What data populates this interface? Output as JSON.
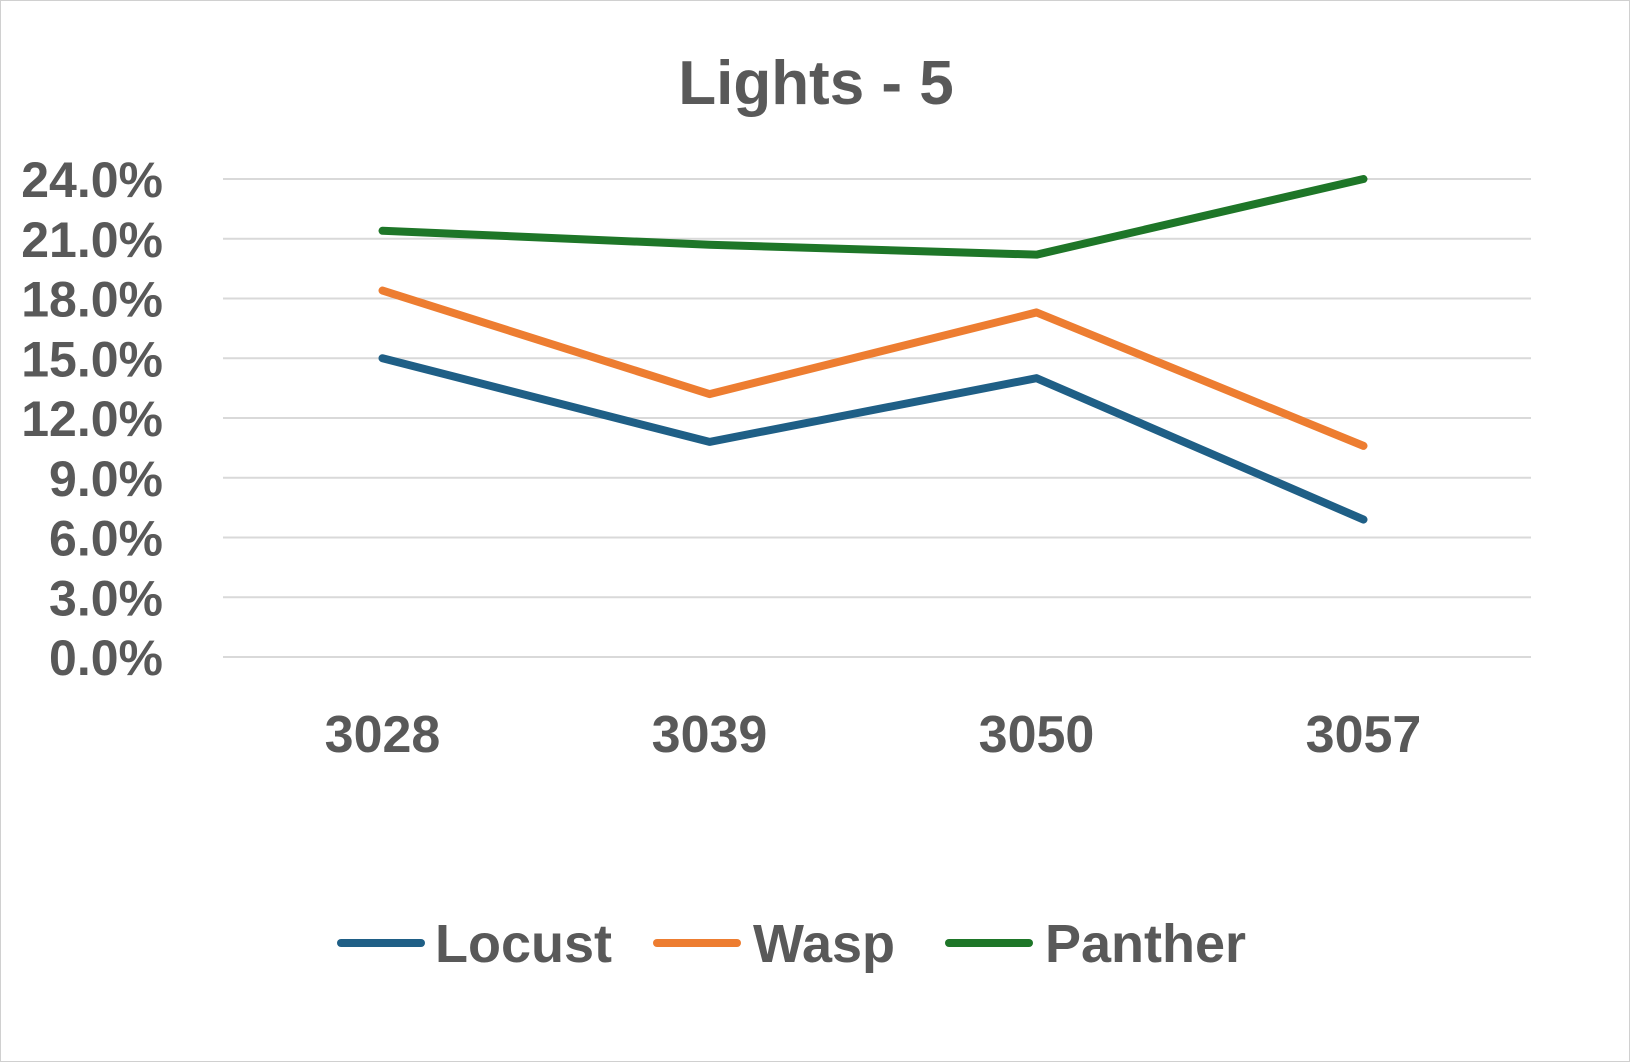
{
  "chart_data": {
    "type": "line",
    "title": "Lights - 5",
    "categories": [
      "3028",
      "3039",
      "3050",
      "3057"
    ],
    "y_ticks": [
      "0.0%",
      "3.0%",
      "6.0%",
      "9.0%",
      "12.0%",
      "15.0%",
      "18.0%",
      "21.0%",
      "24.0%"
    ],
    "ylim": [
      0,
      24
    ],
    "grid": true,
    "legend_position": "bottom",
    "series": [
      {
        "name": "Locust",
        "color": "#1f5f86",
        "values": [
          15.0,
          10.8,
          14.0,
          6.9
        ]
      },
      {
        "name": "Wasp",
        "color": "#ed7d31",
        "values": [
          18.4,
          13.2,
          17.3,
          10.6
        ]
      },
      {
        "name": "Panther",
        "color": "#1e7628",
        "values": [
          21.4,
          20.7,
          20.2,
          24.0
        ]
      }
    ]
  }
}
